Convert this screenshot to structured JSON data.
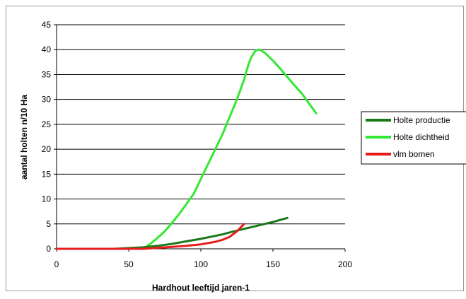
{
  "chart_data": {
    "type": "line",
    "xlabel": "Hardhout leeftijd jaren-1",
    "ylabel": "aantal holten n/10 Ha",
    "xlim": [
      0,
      200
    ],
    "ylim": [
      0,
      45
    ],
    "xticks": [
      "0",
      "50",
      "100",
      "150",
      "200"
    ],
    "yticks": [
      "0",
      "5",
      "10",
      "15",
      "20",
      "25",
      "30",
      "35",
      "40",
      "45"
    ],
    "grid": "horizontal",
    "legend_position": "right",
    "series": [
      {
        "name": "Holte productie",
        "color": "#1a7a1a",
        "x": [
          0,
          20,
          40,
          60,
          70,
          80,
          90,
          100,
          110,
          115,
          120,
          130,
          140,
          150,
          160
        ],
        "y": [
          0,
          0,
          0,
          0.3,
          0.6,
          1.0,
          1.5,
          2.0,
          2.6,
          2.9,
          3.3,
          4.0,
          4.7,
          5.4,
          6.2
        ]
      },
      {
        "name": "Holte dichtheid",
        "color": "#33e833",
        "x": [
          0,
          20,
          40,
          60,
          65,
          70,
          75,
          80,
          85,
          90,
          95,
          100,
          105,
          110,
          115,
          120,
          125,
          130,
          133,
          135,
          138,
          140,
          142,
          145,
          150,
          155,
          160,
          165,
          170,
          175,
          180
        ],
        "y": [
          0,
          0,
          0,
          0,
          1,
          2.2,
          3.5,
          5.2,
          7.0,
          9.0,
          11.0,
          14.0,
          17.0,
          20.0,
          23.0,
          26.5,
          30.0,
          34.0,
          37.0,
          38.5,
          39.8,
          40.0,
          39.8,
          39.2,
          37.8,
          36.2,
          34.5,
          32.8,
          31.2,
          29.2,
          27.2
        ]
      },
      {
        "name": "vlm bomen",
        "color": "#e81c1c",
        "x": [
          0,
          20,
          40,
          60,
          70,
          80,
          90,
          100,
          110,
          115,
          120,
          125,
          130
        ],
        "y": [
          0,
          0,
          0,
          0,
          0.2,
          0.4,
          0.6,
          0.9,
          1.4,
          1.8,
          2.4,
          3.5,
          5.0
        ]
      }
    ]
  }
}
